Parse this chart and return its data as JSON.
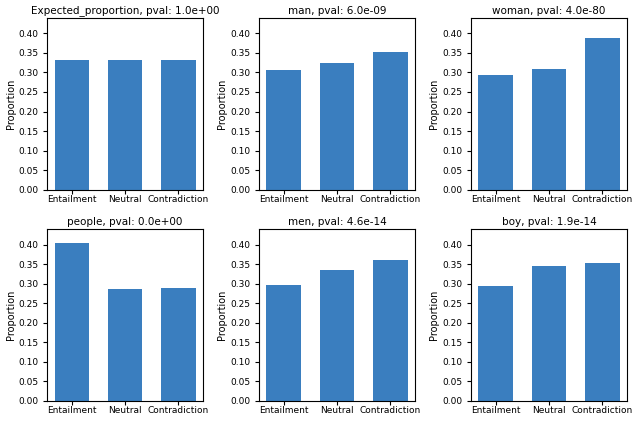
{
  "subplots": [
    {
      "title": "Expected_proportion, pval: 1.0e+00",
      "values": [
        0.333,
        0.333,
        0.333
      ]
    },
    {
      "title": "man, pval: 6.0e-09",
      "values": [
        0.305,
        0.323,
        0.352
      ]
    },
    {
      "title": "woman, pval: 4.0e-80",
      "values": [
        0.293,
        0.31,
        0.388
      ]
    },
    {
      "title": "people, pval: 0.0e+00",
      "values": [
        0.405,
        0.285,
        0.29
      ]
    },
    {
      "title": "men, pval: 4.6e-14",
      "values": [
        0.296,
        0.335,
        0.36
      ]
    },
    {
      "title": "boy, pval: 1.9e-14",
      "values": [
        0.295,
        0.345,
        0.353
      ]
    }
  ],
  "categories": [
    "Entailment",
    "Neutral",
    "Contradiction"
  ],
  "ylabel": "Proportion",
  "bar_color": "#3a7ebf",
  "ylim": [
    0.0,
    0.44
  ],
  "yticks": [
    0.0,
    0.05,
    0.1,
    0.15,
    0.2,
    0.25,
    0.3,
    0.35,
    0.4
  ],
  "figsize": [
    6.4,
    4.21
  ],
  "dpi": 100
}
